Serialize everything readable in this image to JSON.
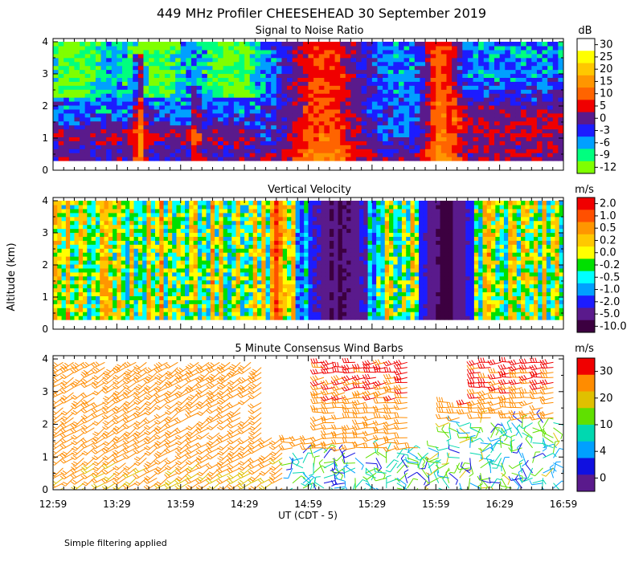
{
  "title": "449 MHz Profiler CHEESEHEAD 30 September 2019",
  "footnote": "Simple filtering applied",
  "ylabel": "Altitude (km)",
  "xlabel": "UT  (CDT - 5)",
  "x_ticks": [
    "12:59",
    "13:29",
    "13:59",
    "14:29",
    "14:59",
    "15:29",
    "15:59",
    "16:29",
    "16:59"
  ],
  "y_ticks": [
    "0",
    "1",
    "2",
    "3",
    "4"
  ],
  "chart_data": [
    {
      "type": "heatmap",
      "title": "Signal to Noise Ratio",
      "colorbar_unit": "dB",
      "colorbar_ticks": [
        "30",
        "25",
        "20",
        "15",
        "10",
        "5",
        "0",
        "-3",
        "-6",
        "-9",
        "-12"
      ],
      "colors": [
        "#ffffff",
        "#ffff00",
        "#ffc800",
        "#ff9600",
        "#ff6400",
        "#f00000",
        "#5a1a8c",
        "#1c1cff",
        "#00a0ff",
        "#00ff7f",
        "#7fff00"
      ],
      "x_range": [
        "12:59",
        "16:59"
      ],
      "y_range": [
        0.3,
        4
      ],
      "ylim": [
        0,
        4.1
      ]
    },
    {
      "type": "heatmap",
      "title": "Vertical Velocity",
      "colorbar_unit": "m/s",
      "colorbar_ticks": [
        "2.0",
        "1.0",
        "0.5",
        "0.2",
        "0.0",
        "-0.2",
        "-0.5",
        "-1.0",
        "-2.0",
        "-5.0",
        "-10.0"
      ],
      "colors": [
        "#f00000",
        "#ff5000",
        "#ff9600",
        "#ffc800",
        "#ffff00",
        "#00e000",
        "#00ffff",
        "#00a0ff",
        "#1c1cff",
        "#5a1a8c",
        "#3c0040"
      ],
      "x_range": [
        "12:59",
        "16:59"
      ],
      "y_range": [
        0.3,
        4
      ],
      "ylim": [
        0,
        4.1
      ]
    },
    {
      "type": "wind-barbs",
      "title": "5 Minute Consensus Wind Barbs",
      "colorbar_unit": "m/s",
      "colorbar_ticks": [
        "30",
        "20",
        "10",
        "4",
        "0"
      ],
      "colors": [
        "#f00000",
        "#ff8c00",
        "#e0c000",
        "#60e000",
        "#00d8b0",
        "#00a0ff",
        "#1010e0",
        "#5a1a8c"
      ],
      "x_range": [
        "12:59",
        "16:59"
      ],
      "ylim": [
        0,
        4.1
      ]
    }
  ]
}
